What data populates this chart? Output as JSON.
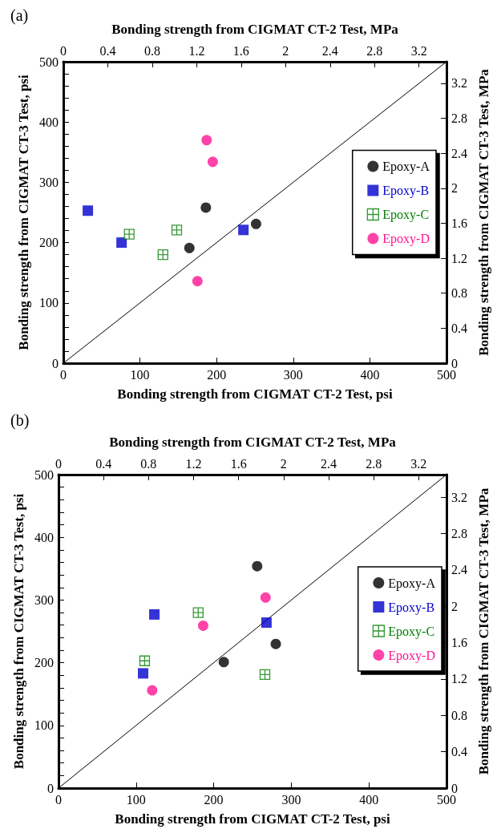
{
  "chart_data": [
    {
      "type": "scatter",
      "title": "(a)",
      "xlabel": "Bonding strength from CIGMAT CT-2 Test, psi",
      "ylabel": "Bonding strength from CIGMAT CT-3 Test, psi",
      "x2label": "Bonding strength from CIGMAT CT-2 Test, MPa",
      "y2label": "Bonding strength from CIGMAT CT-3 Test, MPa",
      "xlim": [
        0,
        500
      ],
      "ylim": [
        0,
        500
      ],
      "x2lim": [
        0,
        3.447
      ],
      "y2lim": [
        0,
        3.447
      ],
      "xticks": [
        0,
        100,
        200,
        300,
        400,
        500
      ],
      "yticks": [
        0,
        {
          "value": 20,
          "label": null
        },
        {
          "value": 40,
          "label": null
        },
        {
          "value": 60,
          "label": null
        },
        {
          "value": 80,
          "label": null
        },
        100,
        {
          "value": 120,
          "label": null
        },
        {
          "value": 140,
          "label": null
        },
        {
          "value": 160,
          "label": null
        },
        {
          "value": 180,
          "label": null
        },
        200,
        {
          "value": 220,
          "label": null
        },
        {
          "value": 240,
          "label": null
        },
        {
          "value": 260,
          "label": null
        },
        {
          "value": 280,
          "label": null
        },
        300,
        {
          "value": 320,
          "label": null
        },
        {
          "value": 340,
          "label": null
        },
        {
          "value": 360,
          "label": null
        },
        {
          "value": 380,
          "label": null
        },
        400,
        {
          "value": 420,
          "label": null
        },
        {
          "value": 440,
          "label": null
        },
        {
          "value": 460,
          "label": null
        },
        {
          "value": 480,
          "label": null
        },
        500
      ],
      "x2ticks": [
        0,
        0.4,
        0.8,
        1.2,
        1.6,
        2,
        2.4,
        2.8,
        3.2
      ],
      "y2ticks": [
        0,
        0.4,
        0.8,
        1.2,
        1.6,
        2,
        2.4,
        2.8,
        3.2
      ],
      "grid": false,
      "legend": "right",
      "series": [
        {
          "name": "Epoxy-A",
          "color": "#000000",
          "marker": "circle",
          "x": [
            164.5,
            186,
            251.5
          ],
          "values": [
            191,
            258,
            231
          ]
        },
        {
          "name": "Epoxy-B",
          "color": "#0000cc",
          "marker": "square",
          "x": [
            32,
            76,
            235
          ],
          "values": [
            253,
            200,
            221
          ]
        },
        {
          "name": "Epoxy-C",
          "color": "#008000",
          "marker": "cross",
          "x": [
            86,
            130,
            148
          ],
          "values": [
            214,
            180,
            221
          ]
        },
        {
          "name": "Epoxy-D",
          "color": "#ff1493",
          "marker": "circle",
          "x": [
            187,
            195,
            175
          ],
          "values": [
            370,
            334,
            136
          ]
        },
        {
          "type": "line",
          "color": "#000000",
          "marker": "none",
          "x": [
            0,
            500
          ],
          "values": [
            0,
            500
          ]
        }
      ]
    },
    {
      "type": "scatter",
      "title": "(b)",
      "xlabel": "Bonding strength from CIGMAT CT-2 Test, psi",
      "ylabel": "Bonding strength from CIGMAT CT-3 Test, psi",
      "x2label": "Bonding strength from CIGMAT CT-2 Test, MPa",
      "y2label": "Bonding strength from CIGMAT CT-3 Test, MPa",
      "xlim": [
        0,
        500
      ],
      "ylim": [
        0,
        500
      ],
      "x2lim": [
        0,
        3.447
      ],
      "y2lim": [
        0,
        3.447
      ],
      "xticks": [
        0,
        100,
        200,
        300,
        400,
        500
      ],
      "yticks": [
        0,
        {
          "value": 20,
          "label": null
        },
        {
          "value": 40,
          "label": null
        },
        {
          "value": 60,
          "label": null
        },
        {
          "value": 80,
          "label": null
        },
        100,
        {
          "value": 120,
          "label": null
        },
        {
          "value": 140,
          "label": null
        },
        {
          "value": 160,
          "label": null
        },
        {
          "value": 180,
          "label": null
        },
        200,
        {
          "value": 220,
          "label": null
        },
        {
          "value": 240,
          "label": null
        },
        {
          "value": 260,
          "label": null
        },
        {
          "value": 280,
          "label": null
        },
        300,
        {
          "value": 320,
          "label": null
        },
        {
          "value": 340,
          "label": null
        },
        {
          "value": 360,
          "label": null
        },
        {
          "value": 380,
          "label": null
        },
        400,
        {
          "value": 420,
          "label": null
        },
        {
          "value": 440,
          "label": null
        },
        {
          "value": 460,
          "label": null
        },
        {
          "value": 480,
          "label": null
        },
        500
      ],
      "x2ticks": [
        0,
        0.4,
        0.8,
        1.2,
        1.6,
        2,
        2.4,
        2.8,
        3.2
      ],
      "y2ticks": [
        0,
        0.4,
        0.8,
        1.2,
        1.6,
        2,
        2.4,
        2.8,
        3.2
      ],
      "grid": false,
      "legend": "right",
      "series": [
        {
          "name": "Epoxy-A",
          "color": "#000000",
          "marker": "circle",
          "x": [
            213,
            256,
            280
          ],
          "values": [
            201,
            354,
            230
          ]
        },
        {
          "name": "Epoxy-B",
          "color": "#0000cc",
          "marker": "square",
          "x": [
            123.5,
            109,
            268
          ],
          "values": [
            277,
            183,
            264
          ]
        },
        {
          "name": "Epoxy-C",
          "color": "#008000",
          "marker": "cross",
          "x": [
            111,
            180,
            266
          ],
          "values": [
            203,
            280,
            181
          ]
        },
        {
          "name": "Epoxy-D",
          "color": "#ff1493",
          "marker": "circle",
          "x": [
            120.7,
            186.4,
            266.8
          ],
          "values": [
            156,
            259,
            304
          ]
        },
        {
          "type": "line",
          "color": "#000000",
          "marker": "none",
          "x": [
            0,
            500
          ],
          "values": [
            0,
            500
          ]
        }
      ]
    }
  ]
}
